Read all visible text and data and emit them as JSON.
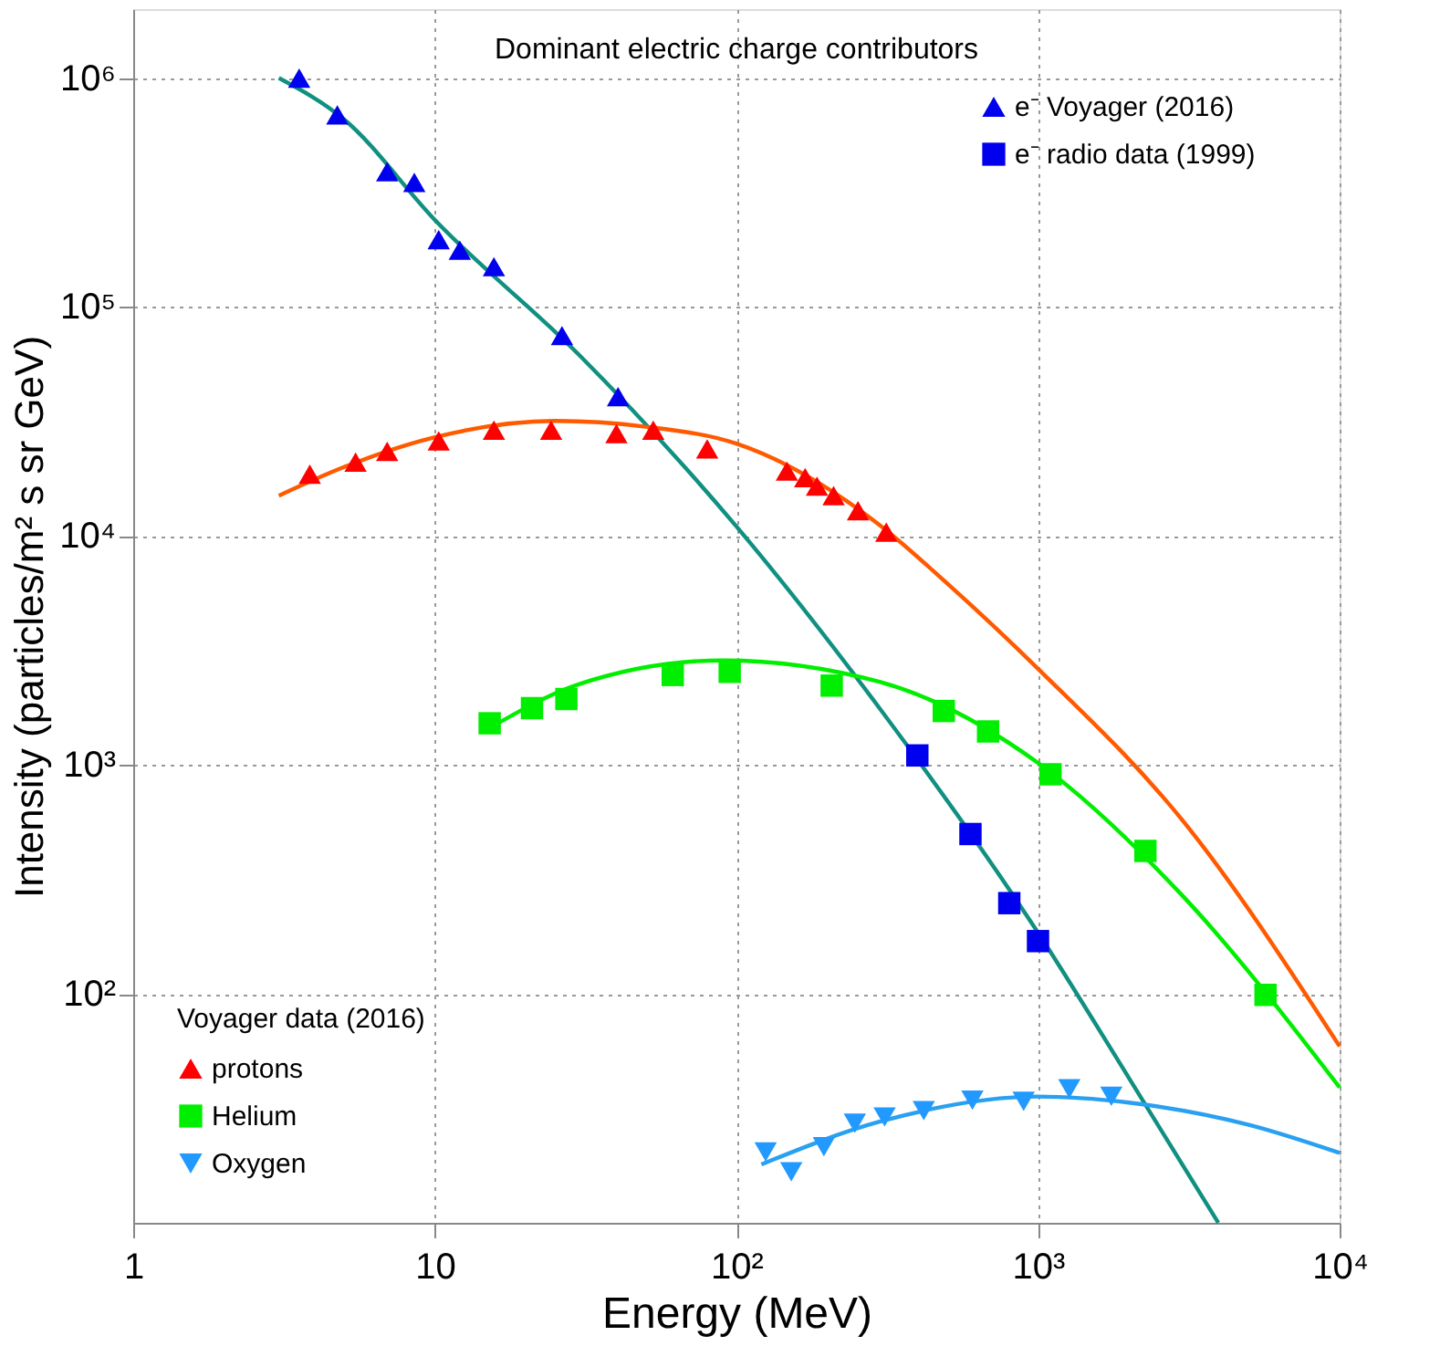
{
  "chart_data": {
    "type": "scatter",
    "title": "Dominant electric charge contributors",
    "xlabel": "Energy (MeV)",
    "ylabel": "Intensity (particles/m² s sr GeV)",
    "legend_title": "Voyager data (2016)",
    "log": "xy",
    "grid": true,
    "legend": [
      "top right",
      "bottom left"
    ],
    "xlim": [
      1,
      10000
    ],
    "ylim": [
      10,
      2000000
    ],
    "xticks": [
      1,
      10,
      {
        "value": 100,
        "label": "10²"
      },
      {
        "value": 1000,
        "label": "10³"
      },
      {
        "value": 10000,
        "label": "10⁴"
      }
    ],
    "yticks": [
      {
        "value": 100,
        "label": "10²"
      },
      {
        "value": 1000,
        "label": "10³"
      },
      {
        "value": 10000,
        "label": "10⁴"
      },
      {
        "value": 100000,
        "label": "10⁵"
      },
      {
        "value": 1000000,
        "label": "10⁶"
      }
    ],
    "series": [
      {
        "type": "line",
        "color": "#109080",
        "line_style": "solid",
        "marker": "none",
        "x": [
          3.04,
          5,
          10,
          30,
          100,
          300,
          1000,
          2000,
          3960
        ],
        "values": [
          1000000,
          660000,
          240000,
          62000,
          11000,
          1750,
          185,
          43,
          10
        ]
      },
      {
        "type": "line",
        "color": "#ff5a00",
        "line_style": "solid",
        "marker": "none",
        "x": [
          3.04,
          5,
          10,
          25,
          50,
          100,
          300,
          500,
          1000,
          3000,
          10000
        ],
        "values": [
          15000,
          20000,
          27000,
          31800,
          30000,
          25300,
          11100,
          6200,
          2630,
          577,
          59
        ]
      },
      {
        "type": "line",
        "color": "#00ee00",
        "line_style": "solid",
        "marker": "none",
        "x": [
          15.2,
          30,
          90,
          300,
          1000,
          3000,
          10000
        ],
        "values": [
          1450,
          2250,
          2860,
          2300,
          1020,
          270,
          39
        ]
      },
      {
        "type": "line",
        "color": "#2aa0f0",
        "line_style": "solid",
        "marker": "none",
        "x": [
          121,
          300,
          1000,
          2000,
          5000,
          10000
        ],
        "values": [
          18,
          27.7,
          35.6,
          33.5,
          26.8,
          20.2
        ]
      },
      {
        "name": "e⁻ Voyager (2016)",
        "color": "#0000ee",
        "marker": "triangle",
        "x": [
          3.55,
          4.75,
          6.95,
          8.55,
          10.3,
          12.1,
          15.7,
          26.4,
          40.5
        ],
        "values": [
          1000000,
          690000,
          390000,
          350000,
          197000,
          177000,
          150000,
          75000,
          40600
        ]
      },
      {
        "name": "e⁻ radio data (1999)",
        "color": "#0000ee",
        "marker": "square",
        "x": [
          398,
          597,
          803,
          1000
        ],
        "values": [
          1100,
          499,
          249,
          170
        ]
      },
      {
        "name": "protons",
        "color": "#ff0000",
        "marker": "triangle",
        "x": [
          3.85,
          5.46,
          6.95,
          10.3,
          15.7,
          24.3,
          40,
          53,
          80,
          147,
          169,
          185,
          210,
          253,
          314
        ],
        "values": [
          18600,
          21000,
          23400,
          26000,
          29000,
          29000,
          28000,
          29000,
          24000,
          19200,
          18000,
          16500,
          15000,
          12900,
          10400
        ]
      },
      {
        "name": "Helium",
        "color": "#00ee00",
        "marker": "square",
        "x": [
          15.2,
          21,
          27.3,
          61.5,
          95,
          207,
          487,
          683,
          1100,
          2270,
          5680
        ],
        "values": [
          1520,
          1770,
          1940,
          2470,
          2550,
          2220,
          1720,
          1400,
          910,
          421,
          99
        ]
      },
      {
        "name": "Oxygen",
        "color": "#2299ff",
        "marker": "triangle-down",
        "x": [
          125,
          152,
          195,
          247,
          310,
          418,
          606,
          896,
          1270,
          1750
        ],
        "values": [
          20.4,
          16.7,
          21.5,
          27.2,
          29,
          30.9,
          34.3,
          33.9,
          38.5,
          35.7
        ]
      }
    ]
  }
}
